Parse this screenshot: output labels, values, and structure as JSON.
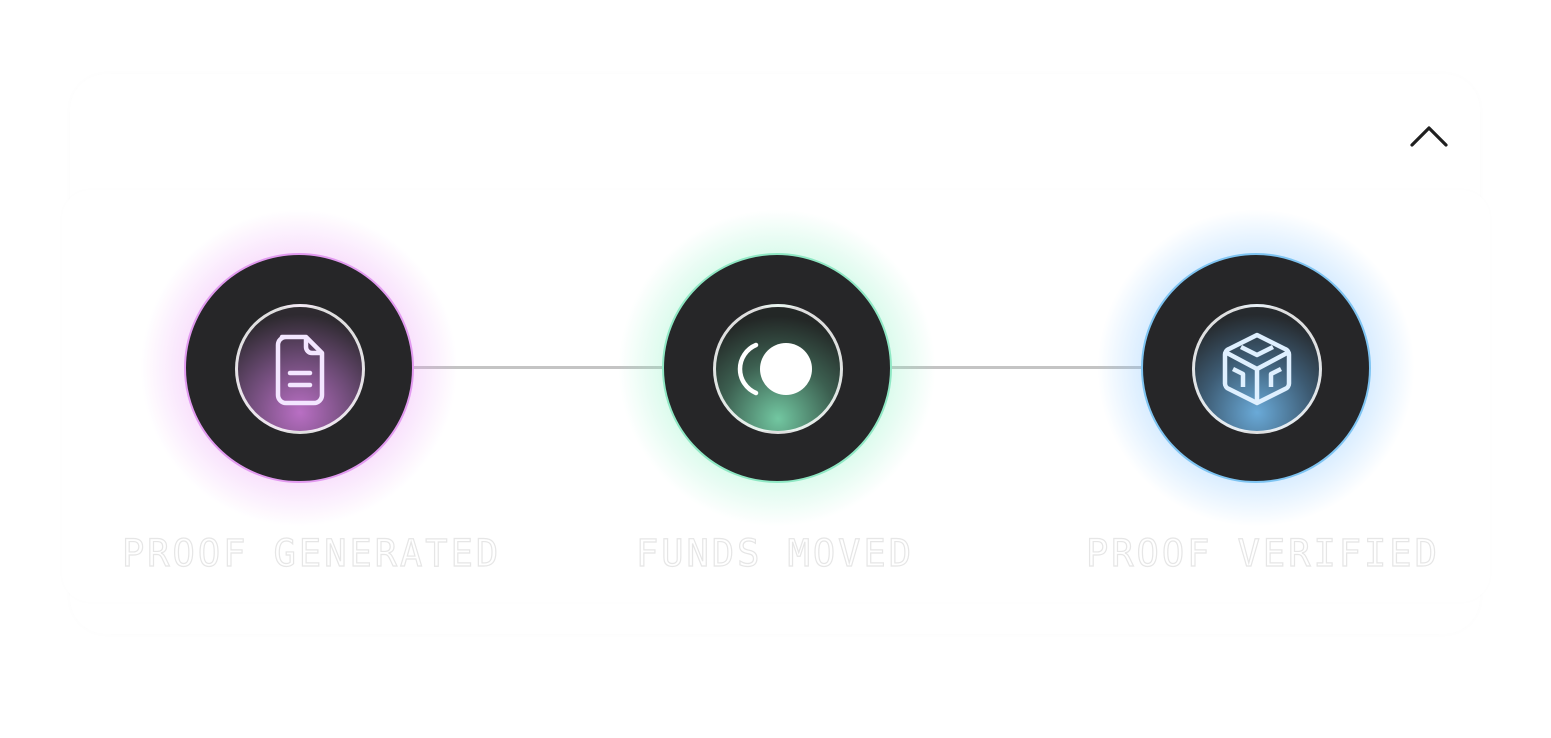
{
  "header": {
    "collapse_icon": "chevron-up-icon"
  },
  "steps": [
    {
      "label": "PROOF GENERATED",
      "icon": "document-icon",
      "color": "#e29af0"
    },
    {
      "label": "FUNDS MOVED",
      "icon": "loading-spinner-icon",
      "color": "#8fe8c4"
    },
    {
      "label": "PROOF VERIFIED",
      "icon": "cube-icon",
      "color": "#7ec4f2"
    }
  ],
  "colors": {
    "circle_fill": "#262628",
    "connector": "#c4c4c4"
  }
}
